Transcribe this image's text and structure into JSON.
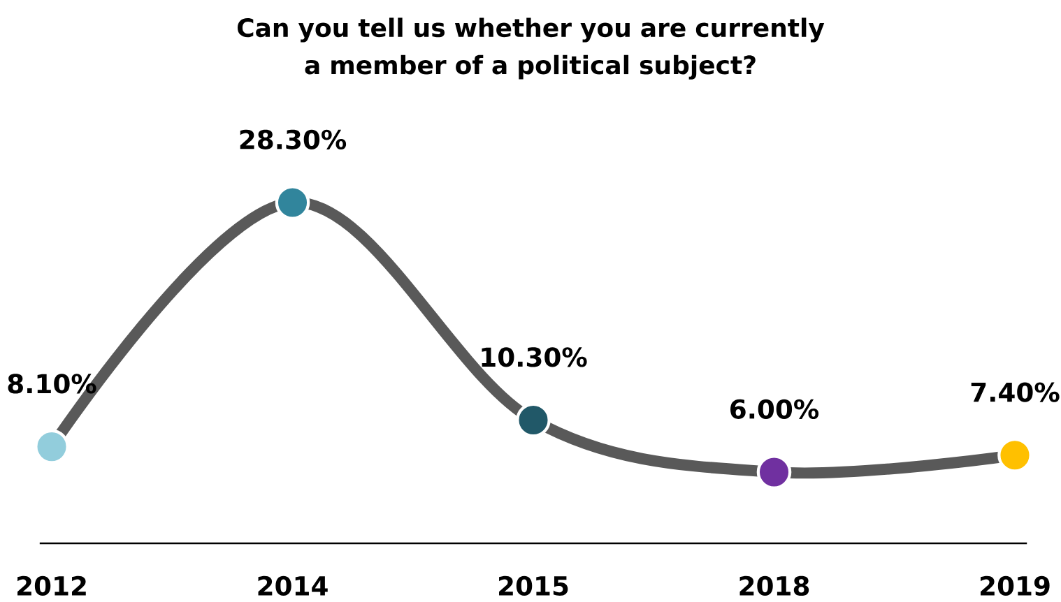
{
  "chart_data": {
    "type": "line",
    "title": "Can you tell us whether you are currently a member of a political subject?",
    "categories": [
      "2012",
      "2014",
      "2015",
      "2018",
      "2019"
    ],
    "series": [
      {
        "color": "#595959",
        "colors": [
          "#92cddc",
          "#31859c",
          "#215868",
          "#7030a0",
          "#ffc000"
        ],
        "values": [
          8.1,
          28.3,
          10.3,
          6.0,
          7.4
        ],
        "value_labels": [
          "8.10%",
          "28.30%",
          "10.30%",
          "6.00%",
          "7.40%"
        ]
      }
    ],
    "tick_labels": "x",
    "marker": "circle",
    "line_style": "solid"
  }
}
